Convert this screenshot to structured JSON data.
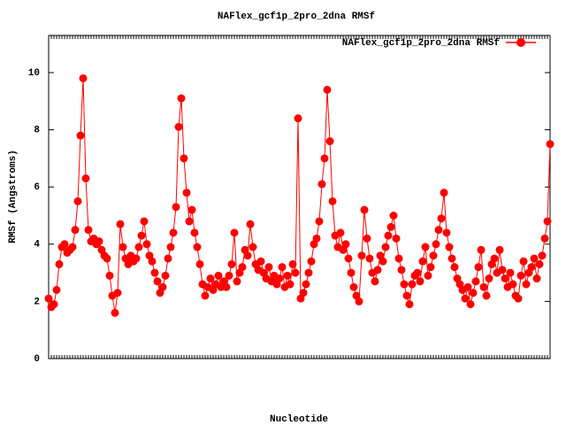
{
  "chart_data": {
    "type": "line",
    "title": "NAFlex_gcf1p_2pro_2dna RMSf",
    "x_label": "Nucleotide",
    "y_label": "RMSf (Angstroms)",
    "ylim": [
      0,
      11.3
    ],
    "yticks": [
      0,
      2,
      4,
      6,
      8,
      10
    ],
    "legend": "top-right",
    "series": [
      {
        "name": "NAFlex_gcf1p_2pro_2dna RMSf",
        "color": "#ff0000",
        "values": [
          2.1,
          1.8,
          1.9,
          2.4,
          3.3,
          3.9,
          4.0,
          3.7,
          3.8,
          3.9,
          4.5,
          5.5,
          7.8,
          9.8,
          6.3,
          4.5,
          4.1,
          4.2,
          4.0,
          4.1,
          3.8,
          3.6,
          3.5,
          2.9,
          2.2,
          1.6,
          2.3,
          4.7,
          3.9,
          3.5,
          3.3,
          3.6,
          3.4,
          3.5,
          3.9,
          4.3,
          4.8,
          4.0,
          3.6,
          3.4,
          3.0,
          2.7,
          2.3,
          2.5,
          2.9,
          3.5,
          3.9,
          4.4,
          5.3,
          8.1,
          9.1,
          7.0,
          5.8,
          4.8,
          5.2,
          4.4,
          3.9,
          3.3,
          2.6,
          2.2,
          2.5,
          2.8,
          2.4,
          2.6,
          2.9,
          2.5,
          2.7,
          2.5,
          2.9,
          3.3,
          4.4,
          2.7,
          3.0,
          3.2,
          3.8,
          3.6,
          4.7,
          3.9,
          3.3,
          3.1,
          3.4,
          3.0,
          2.8,
          3.2,
          2.7,
          2.9,
          2.6,
          2.8,
          3.2,
          2.5,
          2.9,
          2.6,
          3.3,
          3.0,
          8.4,
          2.1,
          2.3,
          2.6,
          3.0,
          3.4,
          4.0,
          4.2,
          4.8,
          6.1,
          7.0,
          9.4,
          7.6,
          5.5,
          4.3,
          3.9,
          4.4,
          3.8,
          4.0,
          3.5,
          3.0,
          2.5,
          2.2,
          2.0,
          3.6,
          5.2,
          4.2,
          3.5,
          3.0,
          2.7,
          3.1,
          3.6,
          3.4,
          3.9,
          4.3,
          4.6,
          5.0,
          4.2,
          3.5,
          3.1,
          2.6,
          2.2,
          1.9,
          2.6,
          2.9,
          3.0,
          2.7,
          3.4,
          3.9,
          2.9,
          3.2,
          3.6,
          4.0,
          4.5,
          4.9,
          5.8,
          4.4,
          3.9,
          3.5,
          3.2,
          2.8,
          2.6,
          2.4,
          2.1,
          2.5,
          1.9,
          2.3,
          2.7,
          3.2,
          3.8,
          2.5,
          2.2,
          2.8,
          3.3,
          3.5,
          3.0,
          3.8,
          3.1,
          2.8,
          2.5,
          3.0,
          2.6,
          2.2,
          2.1,
          2.9,
          3.4,
          2.6,
          3.0,
          3.2,
          3.5,
          2.8,
          3.3,
          3.6,
          4.2,
          4.8,
          7.5
        ]
      }
    ]
  }
}
